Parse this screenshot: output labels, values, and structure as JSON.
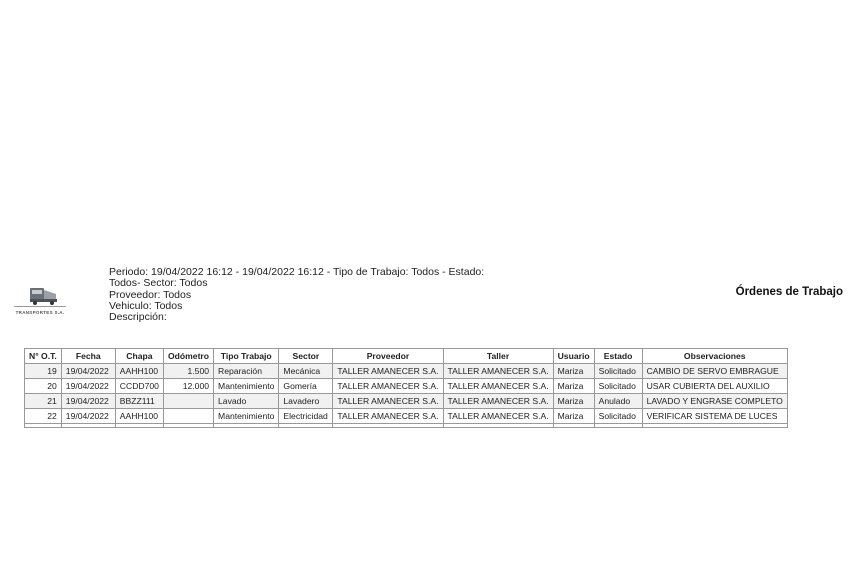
{
  "logo": {
    "text": "TRANSPORTES S.A.",
    "icon": "truck-icon"
  },
  "filters": [
    "Periodo: 19/04/2022 16:12 - 19/04/2022 16:12 - Tipo de Trabajo: Todos - Estado:",
    "Todos- Sector: Todos",
    "Proveedor: Todos",
    "Vehiculo: Todos",
    "Descripción:"
  ],
  "title": "Órdenes de Trabajo",
  "table": {
    "headers": [
      "N° O.T.",
      "Fecha",
      "Chapa",
      "Odómetro",
      "Tipo Trabajo",
      "Sector",
      "Proveedor",
      "Taller",
      "Usuario",
      "Estado",
      "Observaciones"
    ],
    "rows": [
      [
        "19",
        "19/04/2022",
        "AAHH100",
        "1.500",
        "Reparación",
        "Mecánica",
        "TALLER AMANECER S.A.",
        "TALLER AMANECER S.A.",
        "Mariza",
        "Solicitado",
        "CAMBIO DE SERVO EMBRAGUE"
      ],
      [
        "20",
        "19/04/2022",
        "CCDD700",
        "12.000",
        "Mantenimiento",
        "Gomería",
        "TALLER AMANECER S.A.",
        "TALLER AMANECER S.A.",
        "Mariza",
        "Solicitado",
        "USAR CUBIERTA DEL AUXILIO"
      ],
      [
        "21",
        "19/04/2022",
        "BBZZ111",
        "",
        "Lavado",
        "Lavadero",
        "TALLER AMANECER S.A.",
        "TALLER AMANECER S.A.",
        "Mariza",
        "Anulado",
        "LAVADO Y ENGRASE COMPLETO"
      ],
      [
        "22",
        "19/04/2022",
        "AAHH100",
        "",
        "Mantenimiento",
        "Electricidad",
        "TALLER AMANECER S.A.",
        "TALLER AMANECER S.A.",
        "Mariza",
        "Solicitado",
        "VERIFICAR SISTEMA DE LUCES"
      ]
    ]
  }
}
